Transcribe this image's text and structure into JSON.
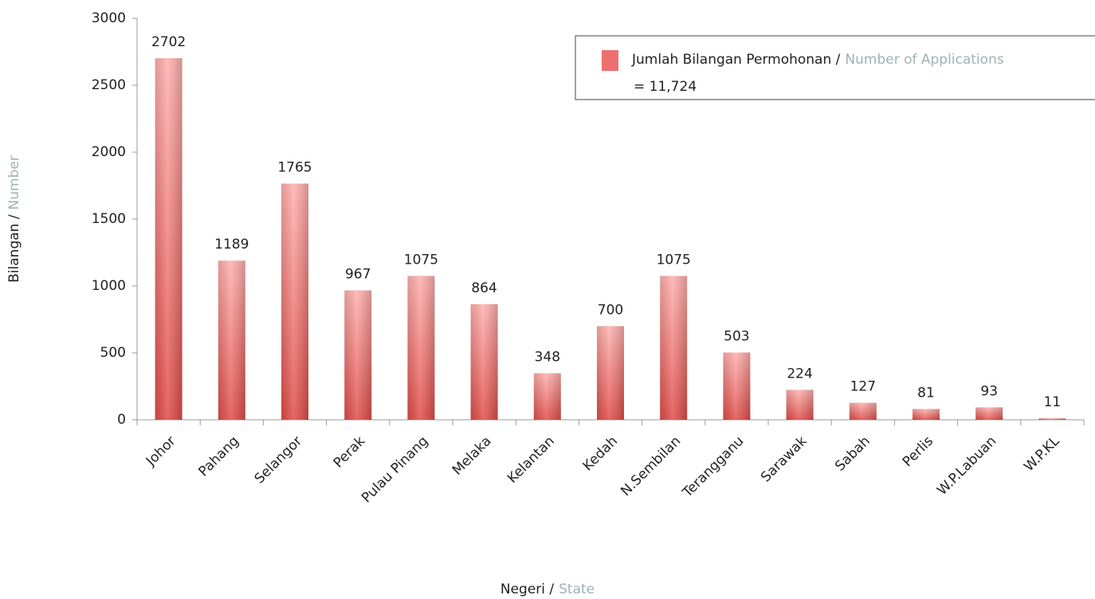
{
  "chart_data": {
    "type": "bar",
    "categories": [
      "Johor",
      "Pahang",
      "Selangor",
      "Perak",
      "Pulau Pinang",
      "Melaka",
      "Kelantan",
      "Kedah",
      "N.Sembilan",
      "Terangganu",
      "Sarawak",
      "Sabah",
      "Perlis",
      "W.P.Labuan",
      "W.P.KL"
    ],
    "values": [
      2702,
      1189,
      1765,
      967,
      1075,
      864,
      348,
      700,
      1075,
      503,
      224,
      127,
      81,
      93,
      11
    ],
    "color": "#ee6f6f",
    "ylim": [
      0,
      3000
    ],
    "yticks": [
      0,
      500,
      1000,
      1500,
      2000,
      2500,
      3000
    ],
    "y_label": [
      "Bilangan /",
      "Number"
    ],
    "x_label": [
      "Negeri /",
      "State"
    ],
    "legend": {
      "text": [
        "Jumlah Bilangan Permohonan /",
        "Number of Applications"
      ],
      "note": "= 11,724"
    }
  }
}
